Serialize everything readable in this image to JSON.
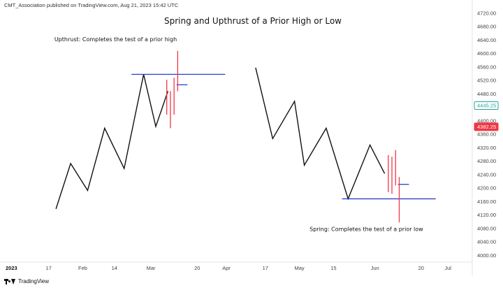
{
  "header": {
    "text": "CMT_Association published on TradingView.com, Aug 21, 2023 15:42 UTC"
  },
  "footer": {
    "brand": "TradingView",
    "logo_icon": "tradingview-logo-icon"
  },
  "chart_data": {
    "type": "line",
    "title": "Spring and Upthrust of a Prior High or Low",
    "annotations": [
      {
        "text": "Upthrust: Completes the test of a prior high",
        "x": 44.5,
        "y": 4636
      },
      {
        "text": "Spring: Completes the test of a prior low",
        "x": 147.5,
        "y": 4072
      }
    ],
    "x_ticks": [
      {
        "label": "2023",
        "x": 0,
        "bold": true
      },
      {
        "label": "17",
        "x": 17
      },
      {
        "label": "Feb",
        "x": 31
      },
      {
        "label": "14",
        "x": 44
      },
      {
        "label": "Mar",
        "x": 59
      },
      {
        "label": "20",
        "x": 78
      },
      {
        "label": "Apr",
        "x": 90
      },
      {
        "label": "17",
        "x": 106
      },
      {
        "label": "May",
        "x": 120
      },
      {
        "label": "15",
        "x": 134
      },
      {
        "label": "Jun",
        "x": 151
      },
      {
        "label": "20",
        "x": 170
      },
      {
        "label": "Jul",
        "x": 181
      }
    ],
    "y_ticks": [
      4000,
      4040,
      4080,
      4120,
      4160,
      4200,
      4240,
      4280,
      4320,
      4360,
      4400,
      4440,
      4480,
      4520,
      4560,
      4600,
      4640,
      4680,
      4720
    ],
    "ylim": [
      3986,
      4730
    ],
    "xlim": [
      -3,
      191
    ],
    "series": [
      {
        "points": [
          [
            20,
            4138
          ],
          [
            26,
            4273
          ],
          [
            33,
            4193
          ],
          [
            40,
            4378
          ],
          [
            48,
            4258
          ],
          [
            56,
            4538
          ],
          [
            61,
            4383
          ],
          [
            66,
            4488
          ]
        ],
        "color": "#111111"
      },
      {
        "points": [
          [
            102,
            4558
          ],
          [
            109,
            4347
          ],
          [
            118,
            4458
          ],
          [
            122,
            4268
          ],
          [
            131,
            4378
          ],
          [
            140,
            4168
          ],
          [
            149,
            4328
          ],
          [
            155,
            4243
          ]
        ],
        "color": "#111111"
      }
    ],
    "spikes": [
      {
        "x": 65.5,
        "low": 4418,
        "high": 4522
      },
      {
        "x": 67,
        "low": 4378,
        "high": 4488
      },
      {
        "x": 68.5,
        "low": 4418,
        "high": 4528
      },
      {
        "x": 70,
        "low": 4488,
        "high": 4608
      },
      {
        "x": 156.5,
        "low": 4188,
        "high": 4298
      },
      {
        "x": 158,
        "low": 4183,
        "high": 4293
      },
      {
        "x": 159.5,
        "low": 4208,
        "high": 4313
      },
      {
        "x": 161,
        "low": 4098,
        "high": 4233
      }
    ],
    "horizontal_lines": [
      {
        "x1": 51,
        "x2": 89.5,
        "y": 4538
      },
      {
        "x1": 137.5,
        "x2": 176,
        "y": 4168
      },
      {
        "x1": 69.5,
        "x2": 74,
        "y": 4507
      },
      {
        "x1": 160.5,
        "x2": 165,
        "y": 4211
      }
    ],
    "price_badges": [
      {
        "value": "4445.25",
        "y": 4445.25,
        "bg": "#ffffff",
        "fg": "#26a69a",
        "border": "#26a69a"
      },
      {
        "value": "4382.25",
        "y": 4382.25,
        "bg": "#f23645",
        "fg": "#ffffff",
        "border": "#f23645"
      }
    ],
    "colors": {
      "line": "#111111",
      "spike": "#f23645",
      "level": "#2a3fce",
      "axis_text": "#444444"
    }
  }
}
